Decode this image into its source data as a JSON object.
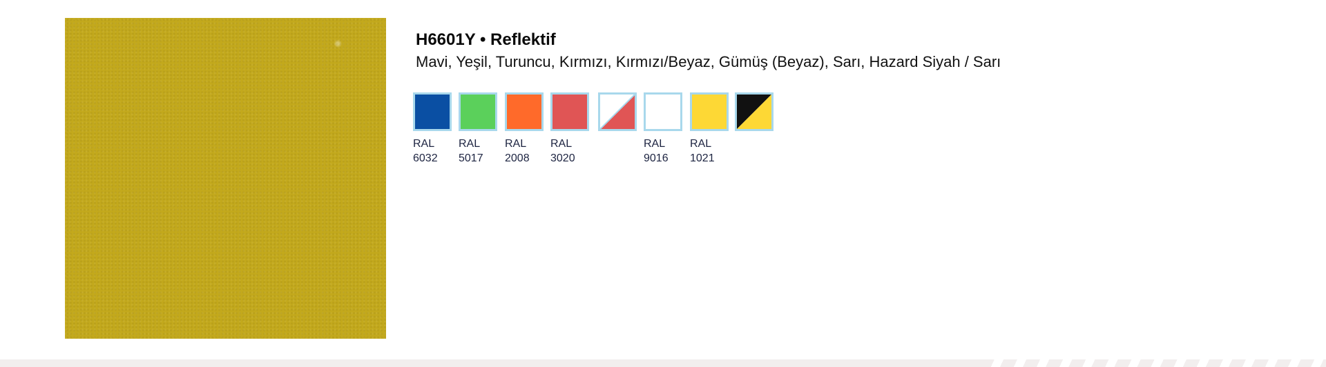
{
  "product": {
    "code_title": "H6601Y • Reflektif",
    "colors_line": "Mavi, Yeşil, Turuncu, Kırmızı, Kırmızı/Beyaz, Gümüş (Beyaz), Sarı, Hazard Siyah / Sarı",
    "sample_color": "#c3a91c"
  },
  "swatches": [
    {
      "name": "blue-swatch",
      "fill": "#0a4fa3",
      "style": "solid",
      "ral_label": "RAL",
      "ral_code": "6032"
    },
    {
      "name": "green-swatch",
      "fill": "#5bd05b",
      "style": "solid",
      "ral_label": "RAL",
      "ral_code": "5017"
    },
    {
      "name": "orange-swatch",
      "fill": "#ff6a2a",
      "style": "solid",
      "ral_label": "RAL",
      "ral_code": "2008"
    },
    {
      "name": "red-swatch",
      "fill": "#e05555",
      "style": "solid",
      "ral_label": "RAL",
      "ral_code": "3020"
    },
    {
      "name": "red-white-swatch",
      "fill": "#e05555",
      "fill2": "#ffffff",
      "style": "diagonal",
      "ral_label": "",
      "ral_code": ""
    },
    {
      "name": "silver-white-swatch",
      "fill": "#ffffff",
      "style": "solid",
      "ral_label": "RAL",
      "ral_code": "9016"
    },
    {
      "name": "yellow-swatch",
      "fill": "#fdd835",
      "style": "solid",
      "ral_label": "RAL",
      "ral_code": "1021"
    },
    {
      "name": "hazard-black-yellow-swatch",
      "fill": "#fdd835",
      "fill2": "#111111",
      "style": "diagonal",
      "ral_label": "",
      "ral_code": ""
    }
  ],
  "colors": {
    "swatch_border": "#a8d8ec",
    "footer_band": "#f2eeee"
  }
}
